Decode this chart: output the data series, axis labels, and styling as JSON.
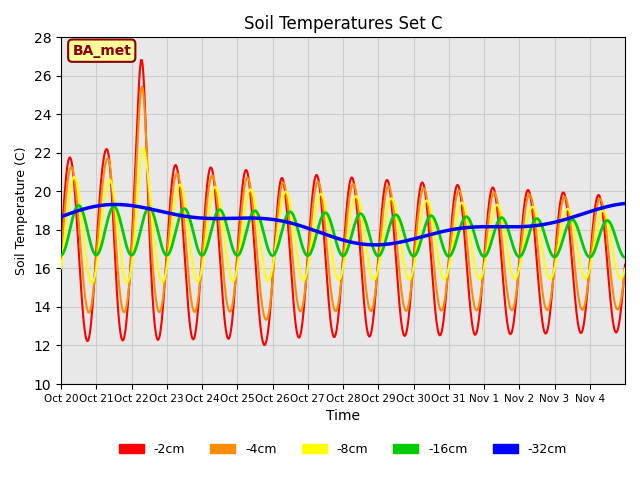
{
  "title": "Soil Temperatures Set C",
  "xlabel": "Time",
  "ylabel": "Soil Temperature (C)",
  "ylim": [
    10,
    28
  ],
  "yticks": [
    10,
    12,
    14,
    16,
    18,
    20,
    22,
    24,
    26,
    28
  ],
  "annotation_text": "BA_met",
  "annotation_color": "#8B0000",
  "annotation_bg": "#FFFF99",
  "annotation_border": "#8B0000",
  "line_colors": {
    "-2cm": "#FF0000",
    "-4cm": "#FF8C00",
    "-8cm": "#FFFF00",
    "-16cm": "#00CC00",
    "-32cm": "#0000FF"
  },
  "line_widths": {
    "-2cm": 1.5,
    "-4cm": 1.5,
    "-8cm": 1.5,
    "-16cm": 2.0,
    "-32cm": 2.5
  },
  "x_tick_labels": [
    "Oct 20",
    "Oct 21",
    "Oct 22",
    "Oct 23",
    "Oct 24",
    "Oct 25",
    "Oct 26",
    "Oct 27",
    "Oct 28",
    "Oct 29",
    "Oct 30",
    "Oct 31",
    "Nov 1",
    "Nov 2",
    "Nov 3",
    "Nov 4"
  ],
  "grid_color": "#CCCCCC",
  "bg_color": "#E8E8E8"
}
